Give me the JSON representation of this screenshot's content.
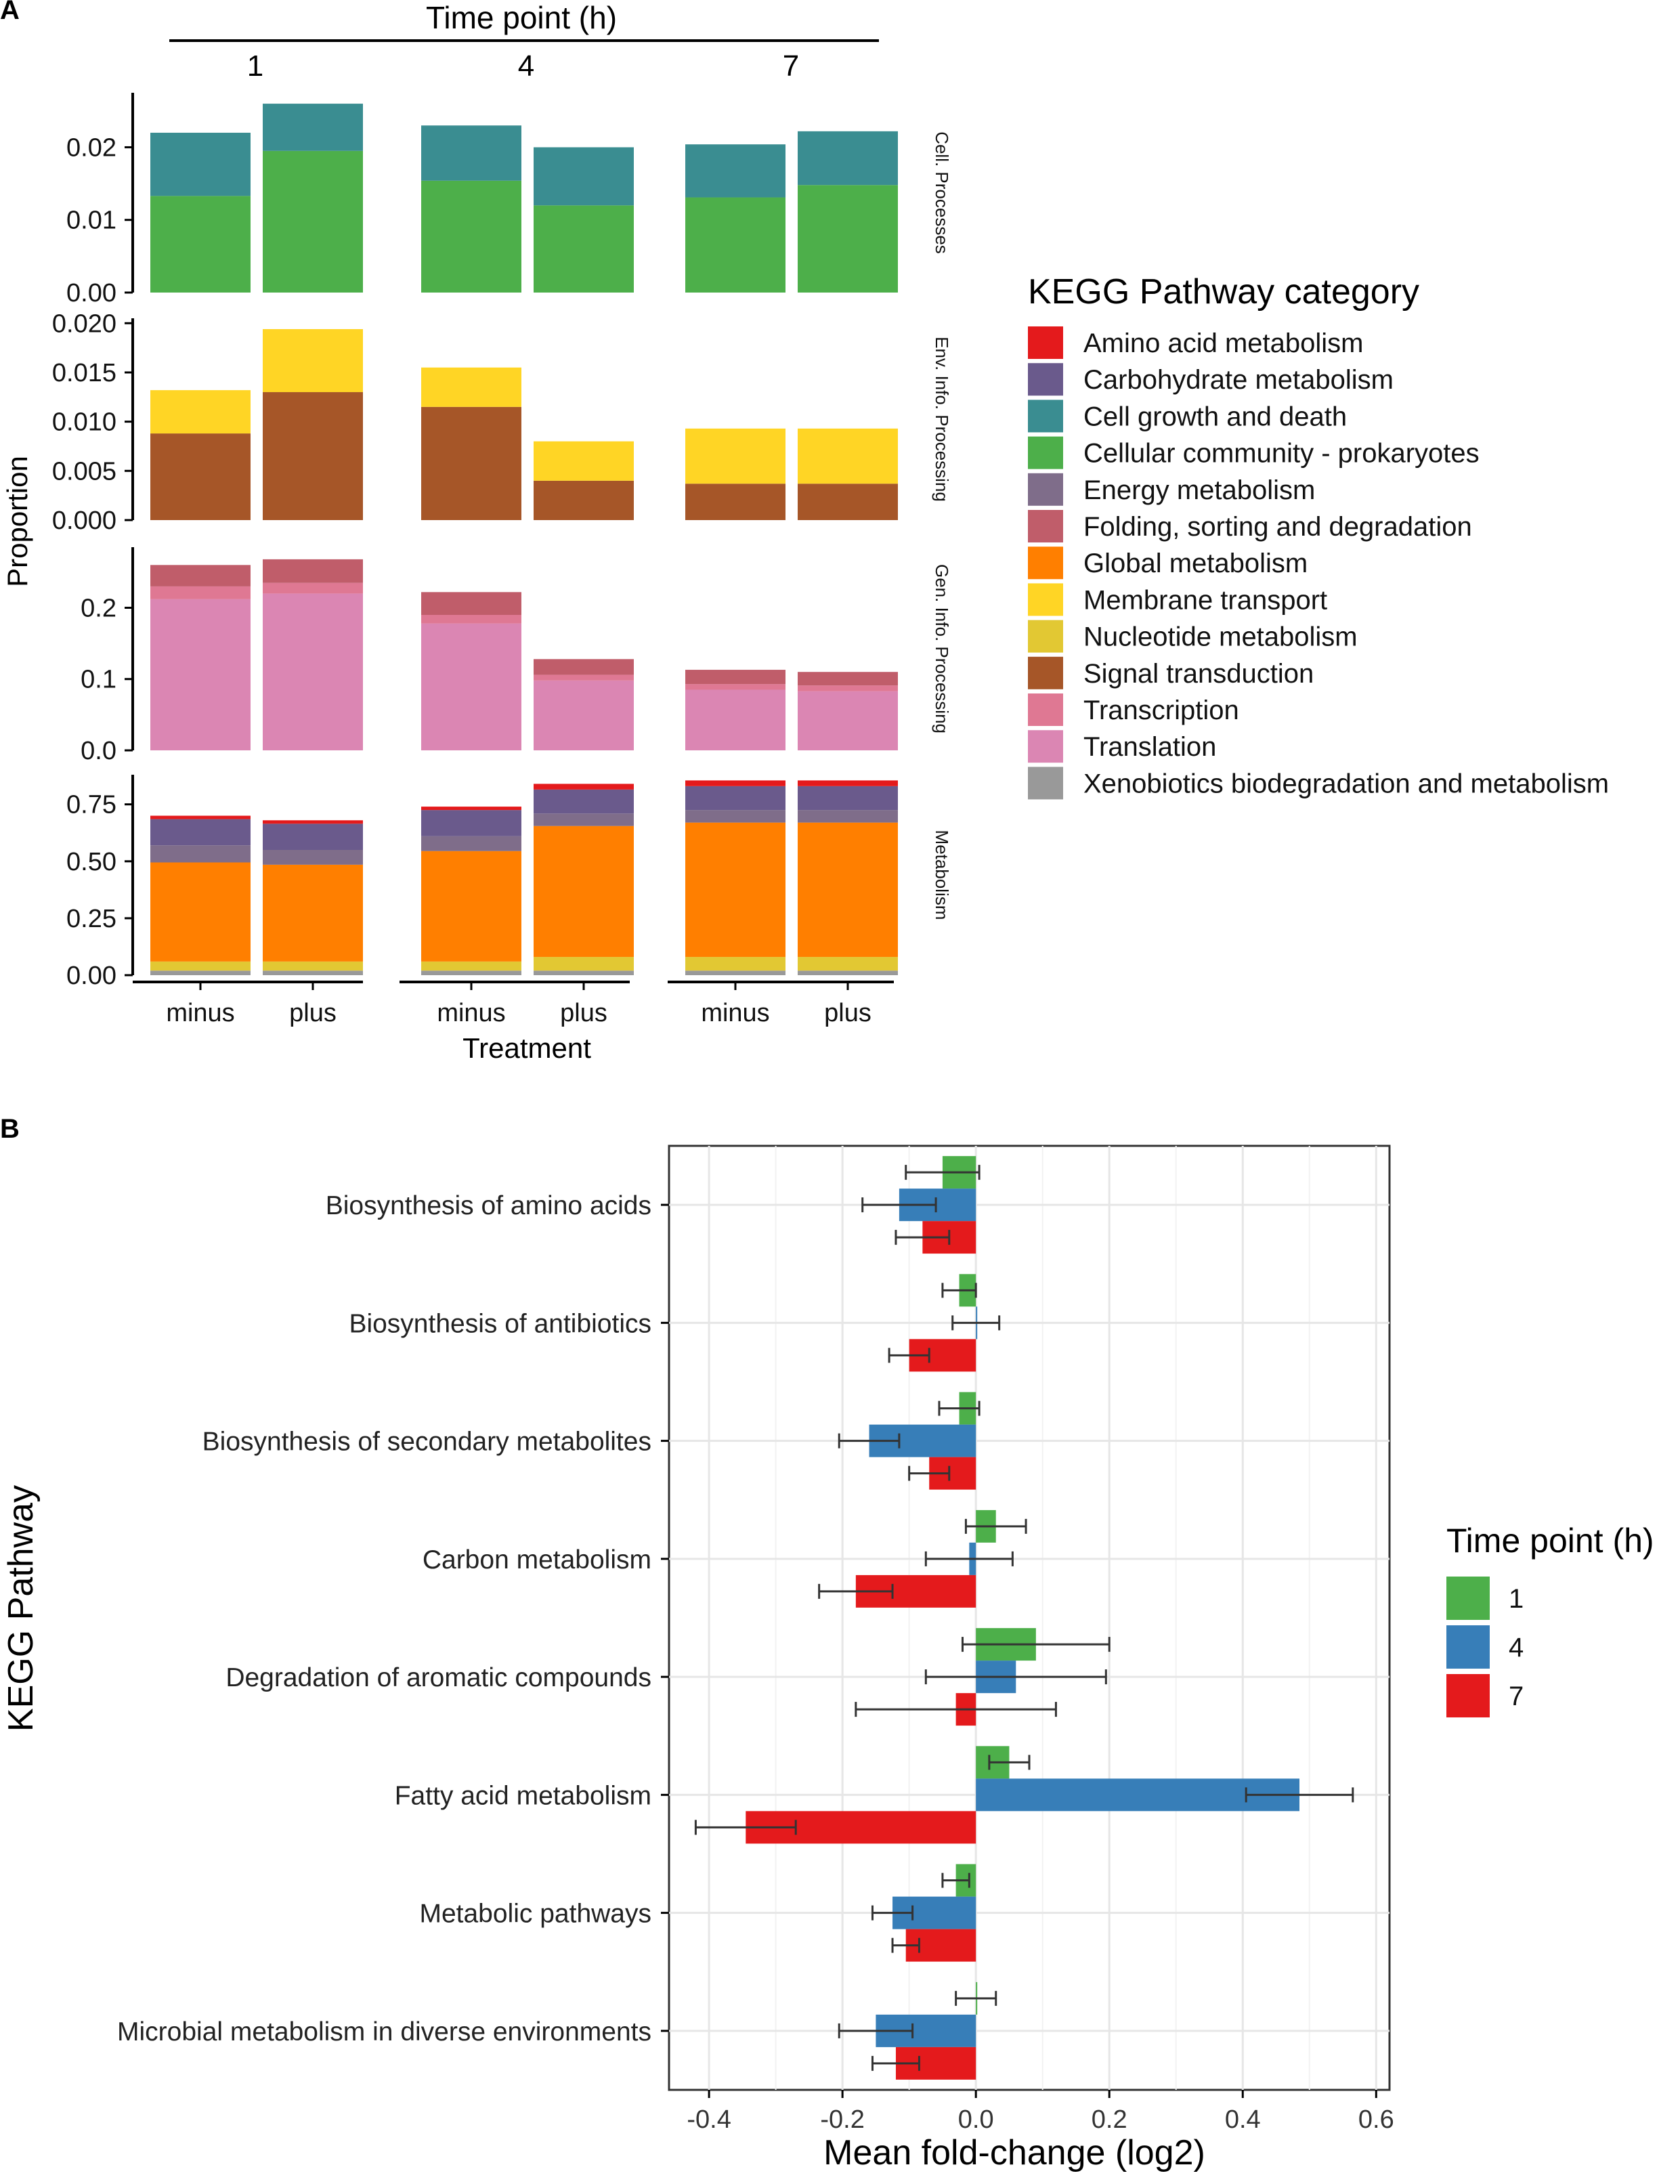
{
  "panel_labels": {
    "a": "A",
    "b": "B"
  },
  "colors": {
    "Amino acid metabolism": "#e41a1c",
    "Carbohydrate metabolism": "#6a5a8c",
    "Cell growth and death": "#3a8d91",
    "Cellular community - prokaryotes": "#4daf4a",
    "Energy metabolism": "#7f6d8a",
    "Folding, sorting and degradation": "#c05d6a",
    "Global metabolism": "#ff7f00",
    "Membrane transport": "#ffd525",
    "Nucleotide metabolism": "#e2c833",
    "Signal transduction": "#a65628",
    "Transcription": "#df7893",
    "Translation": "#db86b3",
    "Xenobiotics biodegradation and metabolism": "#999999",
    "tp1": "#4daf4a",
    "tp4": "#377eb8",
    "tp7": "#e41a1c"
  },
  "chart_data": [
    {
      "type": "bar",
      "stacked": true,
      "title": "Time point (h)",
      "time_points": [
        "1",
        "4",
        "7"
      ],
      "treatments": [
        "minus",
        "plus"
      ],
      "xlabel": "Treatment",
      "ylabel": "Proportion",
      "legend_title": "KEGG Pathway category",
      "legend": [
        "Amino acid metabolism",
        "Carbohydrate metabolism",
        "Cell growth and death",
        "Cellular community - prokaryotes",
        "Energy metabolism",
        "Folding, sorting and degradation",
        "Global metabolism",
        "Membrane transport",
        "Nucleotide metabolism",
        "Signal transduction",
        "Transcription",
        "Translation",
        "Xenobiotics biodegradation and metabolism"
      ],
      "legend_position": "right",
      "bar_labels": [
        "1 minus",
        "1 plus",
        "4 minus",
        "4 plus",
        "7 minus",
        "7 plus"
      ],
      "facets": [
        {
          "name": "Cell. Processes",
          "ylim": [
            0,
            0.0275
          ],
          "ticks": [
            0,
            0.01,
            0.02
          ],
          "tick_labels": [
            "0.00",
            "0.01",
            "0.02"
          ],
          "series": [
            {
              "name": "Cellular community - prokaryotes",
              "values": [
                0.0133,
                0.0195,
                0.0154,
                0.012,
                0.0131,
                0.0148
              ]
            },
            {
              "name": "Cell growth and death",
              "values": [
                0.0087,
                0.0065,
                0.0076,
                0.008,
                0.0073,
                0.0074
              ]
            }
          ]
        },
        {
          "name": "Env. Info. Processing",
          "ylim": [
            0,
            0.0205
          ],
          "ticks": [
            0,
            0.005,
            0.01,
            0.015,
            0.02
          ],
          "tick_labels": [
            "0.000",
            "0.005",
            "0.010",
            "0.015",
            "0.020"
          ],
          "series": [
            {
              "name": "Signal transduction",
              "values": [
                0.0088,
                0.013,
                0.0115,
                0.004,
                0.0037,
                0.0037
              ]
            },
            {
              "name": "Membrane transport",
              "values": [
                0.0044,
                0.0064,
                0.004,
                0.004,
                0.0056,
                0.0056
              ]
            }
          ]
        },
        {
          "name": "Gen. Info. Processing",
          "ylim": [
            0,
            0.285
          ],
          "ticks": [
            0,
            0.1,
            0.2
          ],
          "tick_labels": [
            "0.0",
            "0.1",
            "0.2"
          ],
          "series": [
            {
              "name": "Translation",
              "values": [
                0.212,
                0.22,
                0.178,
                0.098,
                0.085,
                0.083
              ]
            },
            {
              "name": "Transcription",
              "values": [
                0.018,
                0.015,
                0.012,
                0.008,
                0.008,
                0.008
              ]
            },
            {
              "name": "Folding, sorting and degradation",
              "values": [
                0.03,
                0.033,
                0.032,
                0.022,
                0.02,
                0.019
              ]
            }
          ]
        },
        {
          "name": "Metabolism",
          "ylim": [
            0,
            0.88
          ],
          "ticks": [
            0,
            0.25,
            0.5,
            0.75
          ],
          "tick_labels": [
            "0.00",
            "0.25",
            "0.50",
            "0.75"
          ],
          "series": [
            {
              "name": "Xenobiotics biodegradation and metabolism",
              "values": [
                0.02,
                0.02,
                0.02,
                0.02,
                0.02,
                0.02
              ]
            },
            {
              "name": "Nucleotide metabolism",
              "values": [
                0.04,
                0.04,
                0.04,
                0.06,
                0.06,
                0.06
              ]
            },
            {
              "name": "Global metabolism",
              "values": [
                0.435,
                0.425,
                0.485,
                0.575,
                0.59,
                0.59
              ]
            },
            {
              "name": "Energy metabolism",
              "values": [
                0.075,
                0.065,
                0.065,
                0.055,
                0.055,
                0.055
              ]
            },
            {
              "name": "Carbohydrate metabolism",
              "values": [
                0.115,
                0.115,
                0.115,
                0.105,
                0.105,
                0.105
              ]
            },
            {
              "name": "Amino acid metabolism",
              "values": [
                0.015,
                0.015,
                0.015,
                0.025,
                0.025,
                0.025
              ]
            }
          ]
        }
      ]
    },
    {
      "type": "bar",
      "orientation": "horizontal",
      "xlabel": "Mean fold-change (log2)",
      "ylabel": "KEGG Pathway",
      "xlim": [
        -0.46,
        0.62
      ],
      "x_ticks": [
        -0.4,
        -0.2,
        0.0,
        0.2,
        0.4,
        0.6
      ],
      "x_tick_labels": [
        "-0.4",
        "-0.2",
        "0.0",
        "0.2",
        "0.4",
        "0.6"
      ],
      "legend_title": "Time point (h)",
      "legend_position": "right",
      "categories": [
        "Biosynthesis of amino acids",
        "Biosynthesis of antibiotics",
        "Biosynthesis of secondary metabolites",
        "Carbon metabolism",
        "Degradation of aromatic compounds",
        "Fatty acid metabolism",
        "Metabolic pathways",
        "Microbial metabolism in diverse environments"
      ],
      "series": [
        {
          "name": "1",
          "values": [
            -0.05,
            -0.025,
            -0.025,
            0.03,
            0.09,
            0.05,
            -0.03,
            0.0
          ],
          "errors": [
            0.055,
            0.025,
            0.03,
            0.045,
            0.11,
            0.03,
            0.02,
            0.03
          ]
        },
        {
          "name": "4",
          "values": [
            -0.115,
            0.0,
            -0.16,
            -0.01,
            0.06,
            0.485,
            -0.125,
            -0.15
          ],
          "errors": [
            0.055,
            0.035,
            0.045,
            0.065,
            0.135,
            0.08,
            0.03,
            0.055
          ]
        },
        {
          "name": "7",
          "values": [
            -0.08,
            -0.1,
            -0.07,
            -0.18,
            -0.03,
            -0.345,
            -0.105,
            -0.12
          ],
          "errors": [
            0.04,
            0.03,
            0.03,
            0.055,
            0.15,
            0.075,
            0.02,
            0.035
          ]
        }
      ]
    }
  ]
}
